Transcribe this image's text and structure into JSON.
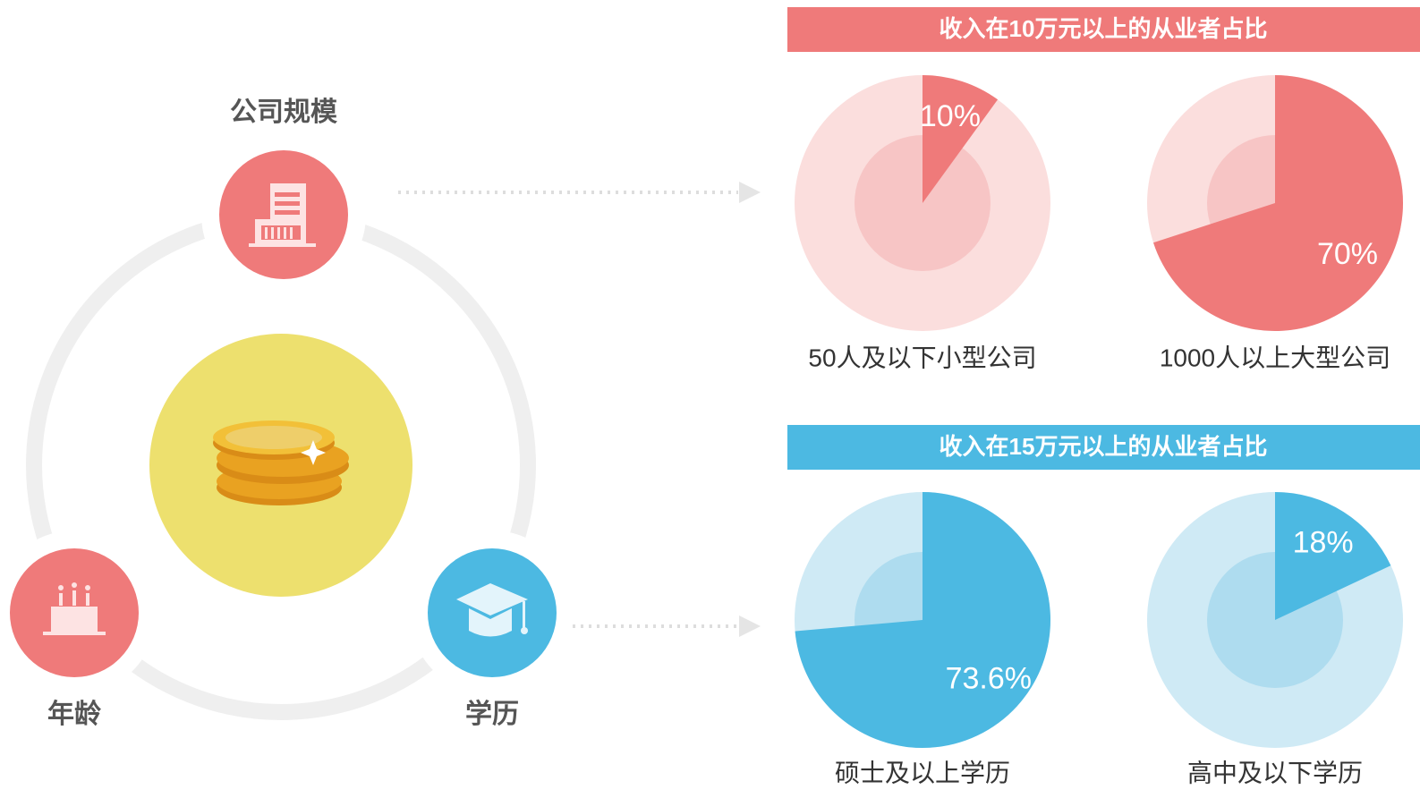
{
  "factors": {
    "company_size": "公司规模",
    "age": "年龄",
    "education": "学历"
  },
  "chart_data": [
    {
      "type": "pie",
      "title": "收入在10万元以上的从业者占比",
      "color": "#ef7a7a",
      "background_color": "#fbdedd",
      "inner_color": "#f7c5c5",
      "categories": [
        "50人及以下小型公司",
        "1000人以上大型公司"
      ],
      "values": [
        10,
        70
      ],
      "value_labels": [
        "10%",
        "70%"
      ]
    },
    {
      "type": "pie",
      "title": "收入在15万元以上的从业者占比",
      "color": "#4cb9e2",
      "background_color": "#cfeaf5",
      "inner_color": "#aedcef",
      "categories": [
        "硕士及以上学历",
        "高中及以下学历"
      ],
      "values": [
        73.6,
        18
      ],
      "value_labels": [
        "73.6%",
        "18%"
      ]
    }
  ]
}
